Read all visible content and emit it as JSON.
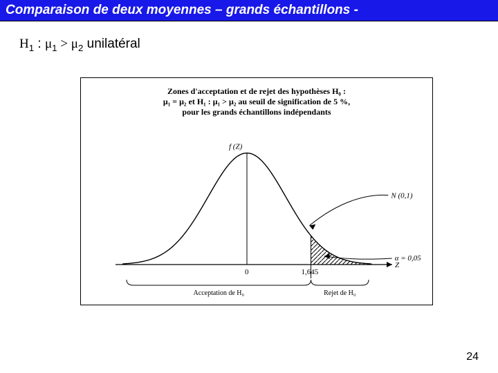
{
  "header": {
    "title": "Comparaison de deux moyennes – grands échantillons -",
    "bg_color": "#1818e8",
    "text_color": "#ffffff"
  },
  "hypothesis": {
    "prefix": "H",
    "sub1": "1",
    "colon": " : ",
    "mu": "μ",
    "muSub1": "1",
    "gt": " > ",
    "muSub2": "2",
    "tail": " unilatéral"
  },
  "figure": {
    "caption": {
      "line1": "Zones d'acceptation et de rejet des hypothèses H₀ :",
      "line2": "μ₁ = μ₂ et H₁ : μ₁ > μ₂ au seuil de signification de 5 %,",
      "line3": "pour les grands échantillons indépendants"
    },
    "labels": {
      "fz": "f (Z)",
      "dist": "N (0,1)",
      "alpha": "α = 0,05",
      "zero": "0",
      "crit": "1,645",
      "zaxis": "Z",
      "accept": "Acceptation de H₀",
      "reject": "Rejet de H₀"
    },
    "style": {
      "curve_color": "#000000",
      "axis_color": "#000000",
      "hatch_color": "#000000",
      "background_color": "#ffffff",
      "font_size_labels": 11,
      "font_size_caption": 12,
      "line_width_curve": 1.4,
      "line_width_axis": 1.2
    },
    "normal_curve": {
      "type": "line",
      "xlim": [
        -3.2,
        3.2
      ],
      "ylim": [
        0,
        0.42
      ],
      "critical_z": 1.645,
      "alpha": 0.05
    }
  },
  "page": {
    "number": "24"
  }
}
